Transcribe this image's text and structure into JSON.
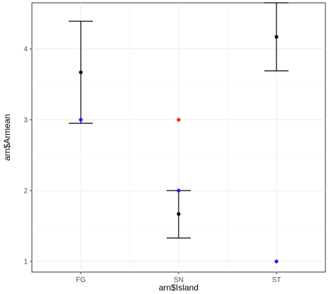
{
  "chart_data": {
    "type": "scatter",
    "title": "",
    "xlabel": "arn$Island",
    "ylabel": "arn$Armean",
    "categories": [
      "FG",
      "SN",
      "ST"
    ],
    "ylim": [
      0.85,
      4.65
    ],
    "yticks": [
      1,
      2,
      3,
      4
    ],
    "grid": true,
    "legend": "none",
    "errorbars": [
      {
        "category": "FG",
        "mean": 3.67,
        "lower": 2.95,
        "upper": 4.39
      },
      {
        "category": "SN",
        "mean": 1.67,
        "lower": 1.33,
        "upper": 2.0
      },
      {
        "category": "ST",
        "mean": 4.17,
        "lower": 3.69,
        "upper": 4.65
      }
    ],
    "series": [
      {
        "color": "#000000",
        "points": [
          {
            "x": "FG",
            "y": 3.67
          },
          {
            "x": "SN",
            "y": 1.67
          },
          {
            "x": "ST",
            "y": 4.17
          }
        ]
      },
      {
        "color": "#1a1aff",
        "points": [
          {
            "x": "FG",
            "y": 3
          },
          {
            "x": "SN",
            "y": 2
          },
          {
            "x": "ST",
            "y": 1
          }
        ]
      },
      {
        "color": "#ff1a1a",
        "points": [
          {
            "x": "SN",
            "y": 3
          }
        ]
      }
    ]
  }
}
